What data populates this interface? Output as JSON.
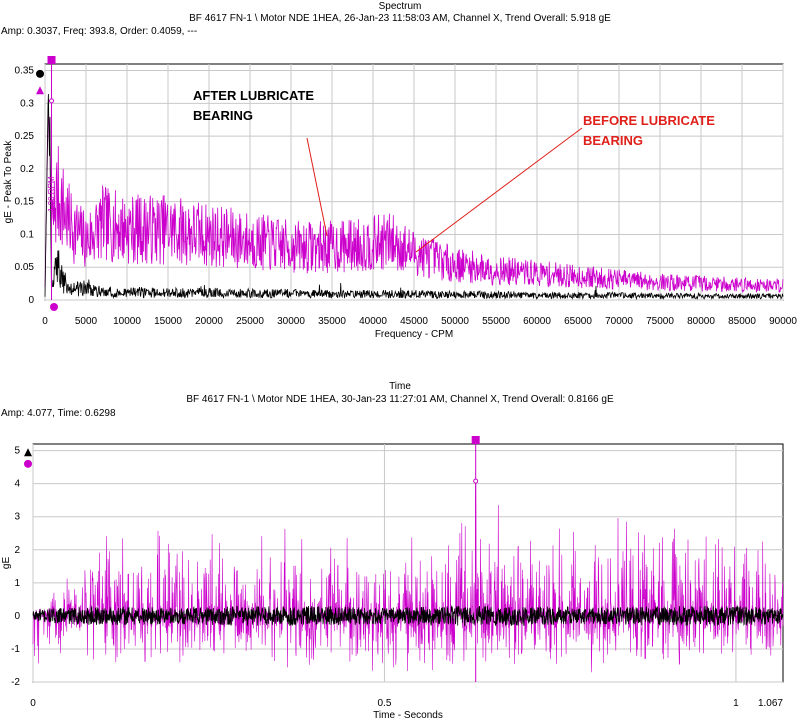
{
  "colors": {
    "magenta": "#cc00cc",
    "black": "#000000",
    "red": "#e0201a",
    "grid": "#c8c8c8",
    "plotBg": "#ffffff"
  },
  "charts": [
    {
      "title": "Spectrum",
      "subtitle": "BF 4617 FN-1 \\ Motor NDE 1HEA, 26-Jan-23 11:58:03 AM, Channel X, Trend Overall: 5.918 gE",
      "readout": "Amp: 0.3037, Freq: 393.8, Order: 0.4059, ---",
      "xlabel": "Frequency - CPM",
      "ylabel": "gE - Peak To Peak",
      "xTicks": [
        "0",
        "5000",
        "10000",
        "15000",
        "20000",
        "25000",
        "30000",
        "35000",
        "40000",
        "45000",
        "50000",
        "55000",
        "60000",
        "65000",
        "70000",
        "75000",
        "80000",
        "85000",
        "90000"
      ],
      "yTicks": [
        "0",
        "0.05",
        "0.1",
        "0.15",
        "0.2",
        "0.25",
        "0.3",
        "0.35"
      ],
      "peakLabel": "1.00 RPM",
      "annotations": {
        "after": [
          "AFTER LUBRICATE",
          "BEARING"
        ],
        "before": [
          "BEFORE LUBRICATE",
          "BEARING"
        ]
      }
    },
    {
      "title": "Time",
      "subtitle": "BF 4617 FN-1 \\ Motor NDE 1HEA, 30-Jan-23 11:27:01 AM, Channel X, Trend Overall: 0.8166 gE",
      "readout": "Amp: 4.077, Time: 0.6298",
      "xlabel": "Time - Seconds",
      "ylabel": "gE",
      "xTicks": [
        "0",
        "0.5",
        "1",
        "1.067"
      ],
      "yTicks": [
        "-2",
        "-1",
        "0",
        "1",
        "2",
        "3",
        "4",
        "5"
      ]
    }
  ],
  "chart_data": [
    {
      "type": "line",
      "title": "Spectrum",
      "xlabel": "Frequency - CPM",
      "ylabel": "gE - Peak To Peak",
      "xlim": [
        0,
        90000
      ],
      "ylim": [
        0,
        0.36
      ],
      "grid": true,
      "cursor": {
        "x": 393.8,
        "y": 0.3037
      },
      "series": [
        {
          "color": "magenta",
          "x": [
            0,
            400,
            800,
            1500,
            3000,
            5000,
            7000,
            10000,
            15000,
            20000,
            25000,
            30000,
            35000,
            40000,
            42000,
            45000,
            50000,
            55000,
            60000,
            65000,
            70000,
            75000,
            80000,
            85000,
            90000
          ],
          "y": [
            0.02,
            0.3,
            0.12,
            0.18,
            0.13,
            0.1,
            0.13,
            0.12,
            0.12,
            0.11,
            0.1,
            0.09,
            0.09,
            0.095,
            0.1,
            0.08,
            0.06,
            0.05,
            0.045,
            0.04,
            0.035,
            0.03,
            0.028,
            0.026,
            0.025
          ]
        },
        {
          "color": "black",
          "x": [
            0,
            400,
            800,
            1500,
            3000,
            5000,
            7000,
            10000,
            15000,
            20000,
            25000,
            30000,
            35000,
            40000,
            45000,
            50000,
            55000,
            60000,
            65000,
            70000,
            75000,
            80000,
            85000,
            90000
          ],
          "y": [
            0.005,
            0.33,
            0.015,
            0.05,
            0.015,
            0.02,
            0.012,
            0.012,
            0.011,
            0.011,
            0.01,
            0.01,
            0.009,
            0.009,
            0.009,
            0.008,
            0.008,
            0.007,
            0.007,
            0.007,
            0.006,
            0.006,
            0.006,
            0.006
          ]
        }
      ]
    },
    {
      "type": "line",
      "title": "Time",
      "xlabel": "Time - Seconds",
      "ylabel": "gE",
      "xlim": [
        0,
        1.067
      ],
      "ylim": [
        -2,
        5.2
      ],
      "grid": true,
      "cursor": {
        "x": 0.6298,
        "y": 4.077
      },
      "series": [
        {
          "color": "magenta",
          "x": [
            0,
            0.1,
            0.2,
            0.3,
            0.4,
            0.5,
            0.6,
            0.6298,
            0.7,
            0.8,
            0.9,
            1.0,
            1.067
          ],
          "y": [
            0.1,
            2.5,
            2.6,
            2.2,
            2.6,
            2.0,
            2.8,
            4.077,
            2.5,
            2.7,
            3.5,
            2.3,
            2.5
          ]
        },
        {
          "color": "black",
          "x": [
            0,
            0.1,
            0.2,
            0.3,
            0.4,
            0.5,
            0.6,
            0.7,
            0.8,
            0.9,
            1.0,
            1.067
          ],
          "y": [
            0.2,
            0.3,
            0.25,
            0.3,
            0.3,
            0.25,
            0.3,
            0.3,
            0.25,
            0.3,
            0.3,
            0.25
          ]
        }
      ]
    }
  ]
}
